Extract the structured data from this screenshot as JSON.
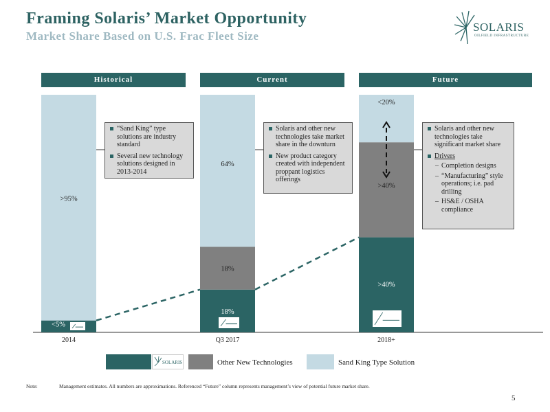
{
  "header": {
    "title": "Framing Solaris’ Market Opportunity",
    "subtitle": "Market Share Based on U.S. Frac Fleet Size",
    "logo_text": "SOLARIS",
    "logo_sub": "OILFIELD INFRASTRUCTURE"
  },
  "columns": {
    "historical": "Historical",
    "current": "Current",
    "future": "Future"
  },
  "callouts": {
    "historical": [
      "“Sand King” type solutions are industry standard",
      "Several new technology solutions designed in 2013-2014"
    ],
    "current": [
      "Solaris and other new technologies take market share in the downturn",
      "New product category created with independent proppant logistics offerings"
    ],
    "future": {
      "bullet1": "Solaris and other new technologies take significant market share",
      "drivers_label": "Drivers",
      "drivers": [
        "Completion designs",
        "“Manufacturing” style operations; i.e. pad drilling",
        "HS&E / OSHA compliance"
      ]
    }
  },
  "colors": {
    "solaris": "#2b6464",
    "other": "#808080",
    "sand_king": "#c4dae3",
    "callout_bg": "#d9d9d9"
  },
  "chart_data": {
    "type": "bar",
    "stacked": true,
    "categories": [
      "2014",
      "Q3 2017",
      "2018+"
    ],
    "series": [
      {
        "name": "Solaris",
        "values": [
          5,
          18,
          40
        ],
        "labels": [
          "<5%",
          "18%",
          ">40%"
        ]
      },
      {
        "name": "Other New Technologies",
        "values": [
          0,
          18,
          40
        ],
        "labels": [
          "",
          "18%",
          ">40%"
        ]
      },
      {
        "name": "Sand King Type Solution",
        "values": [
          95,
          64,
          20
        ],
        "labels": [
          ">95%",
          "64%",
          "<20%"
        ]
      }
    ],
    "ylim": [
      0,
      100
    ],
    "trend_line": "dashed",
    "legend_position": "bottom"
  },
  "legend": {
    "solaris_logo": "SOLARIS",
    "other": "Other New Technologies",
    "sand_king": "Sand King Type Solution"
  },
  "footer": {
    "note_label": "Note:",
    "note": "Management estimates. All numbers are approximations. Referenced “Future” column represents management’s view of potential future market share.",
    "page": "5"
  }
}
